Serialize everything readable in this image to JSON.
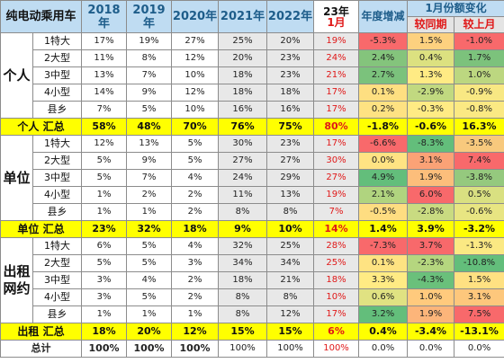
{
  "header": {
    "title": "纯电动乘用车",
    "y2018": "2018年",
    "y2019": "2019年",
    "y2020": "2020年",
    "y2021": "2021年",
    "y2022": "2022年",
    "y23": "23年",
    "jan": "1月",
    "change": "年度增减",
    "jan_change": "1月份额变化",
    "yoy": "较同期",
    "mom": "较上月"
  },
  "groups": [
    {
      "category": "个人",
      "rows": [
        {
          "seg": "1特大",
          "v": [
            "17%",
            "19%",
            "27%",
            "25%",
            "20%",
            "19%",
            "-5.3%",
            "1.5%",
            "-1.0%"
          ],
          "bg": [
            "#f8696b",
            "#fdd17f",
            "#f8696b"
          ]
        },
        {
          "seg": "2大型",
          "v": [
            "11%",
            "8%",
            "12%",
            "20%",
            "23%",
            "24%",
            "2.4%",
            "0.4%",
            "1.7%"
          ],
          "bg": [
            "#84c47c",
            "#dce180",
            "#7cc27c"
          ]
        },
        {
          "seg": "3中型",
          "v": [
            "13%",
            "7%",
            "10%",
            "18%",
            "23%",
            "21%",
            "2.7%",
            "1.3%",
            "1.0%"
          ],
          "bg": [
            "#7bc27c",
            "#ffeb84",
            "#bcd780"
          ]
        },
        {
          "seg": "4小型",
          "v": [
            "14%",
            "9%",
            "12%",
            "18%",
            "18%",
            "17%",
            "0.1%",
            "-2.9%",
            "-0.9%"
          ],
          "bg": [
            "#fedf81",
            "#c1d980",
            "#f8e883"
          ]
        },
        {
          "seg": "县乡",
          "v": [
            "7%",
            "5%",
            "10%",
            "16%",
            "16%",
            "17%",
            "0.2%",
            "-0.3%",
            "-0.8%"
          ],
          "bg": [
            "#fee282",
            "#ffeb84",
            "#fbe983"
          ]
        }
      ],
      "sum_label": "个人 汇总",
      "sum": [
        "58%",
        "48%",
        "70%",
        "76%",
        "75%",
        "80%",
        "-1.8%",
        "-0.6%",
        "16.3%"
      ]
    },
    {
      "category": "单位",
      "rows": [
        {
          "seg": "1特大",
          "v": [
            "12%",
            "13%",
            "5%",
            "30%",
            "23%",
            "17%",
            "-6.6%",
            "-8.3%",
            "-3.5%"
          ],
          "bg": [
            "#f8696b",
            "#63be7b",
            "#f8c97d"
          ]
        },
        {
          "seg": "2大型",
          "v": [
            "5%",
            "9%",
            "5%",
            "27%",
            "27%",
            "30%",
            "0.0%",
            "3.1%",
            "7.4%"
          ],
          "bg": [
            "#ffe383",
            "#fba276",
            "#f8696b"
          ]
        },
        {
          "seg": "3中型",
          "v": [
            "5%",
            "7%",
            "4%",
            "24%",
            "29%",
            "27%",
            "4.9%",
            "1.9%",
            "-3.8%"
          ],
          "bg": [
            "#63be7b",
            "#fcbe7b",
            "#95c97e"
          ]
        },
        {
          "seg": "4小型",
          "v": [
            "1%",
            "2%",
            "2%",
            "11%",
            "13%",
            "19%",
            "2.1%",
            "6.0%",
            "0.5%"
          ],
          "bg": [
            "#b0d47f",
            "#f8696b",
            "#d9e081"
          ]
        },
        {
          "seg": "县乡",
          "v": [
            "1%",
            "1%",
            "2%",
            "8%",
            "8%",
            "7%",
            "-0.5%",
            "-2.8%",
            "-0.6%"
          ],
          "bg": [
            "#fedd81",
            "#c9db81",
            "#e8e582"
          ]
        }
      ],
      "sum_label": "单位 汇总",
      "sum": [
        "23%",
        "32%",
        "18%",
        "9%",
        "10%",
        "14%",
        "1.4%",
        "3.9%",
        "-3.2%"
      ]
    },
    {
      "category": "出租网约",
      "rows": [
        {
          "seg": "1特大",
          "v": [
            "6%",
            "5%",
            "4%",
            "32%",
            "25%",
            "28%",
            "-7.3%",
            "3.7%",
            "-1.3%"
          ],
          "bg": [
            "#f8696b",
            "#f8696b",
            "#fbe983"
          ]
        },
        {
          "seg": "2大型",
          "v": [
            "5%",
            "5%",
            "3%",
            "34%",
            "34%",
            "25%",
            "0.1%",
            "-2.3%",
            "-10.8%"
          ],
          "bg": [
            "#fee382",
            "#b5d67f",
            "#63be7b"
          ]
        },
        {
          "seg": "3中型",
          "v": [
            "3%",
            "4%",
            "2%",
            "18%",
            "21%",
            "18%",
            "3.3%",
            "-4.3%",
            "1.5%"
          ],
          "bg": [
            "#ffeb84",
            "#6ac07b",
            "#ffe182"
          ]
        },
        {
          "seg": "4小型",
          "v": [
            "3%",
            "5%",
            "2%",
            "8%",
            "8%",
            "10%",
            "0.6%",
            "1.0%",
            "3.1%"
          ],
          "bg": [
            "#e0e282",
            "#ffca7d",
            "#fdc77c"
          ]
        },
        {
          "seg": "县乡",
          "v": [
            "1%",
            "1%",
            "1%",
            "8%",
            "12%",
            "17%",
            "3.2%",
            "1.9%",
            "7.5%"
          ],
          "bg": [
            "#63be7b",
            "#fcb57a",
            "#f8696b"
          ]
        }
      ],
      "sum_label": "出租 汇总",
      "sum": [
        "18%",
        "20%",
        "12%",
        "15%",
        "15%",
        "6%",
        "0.4%",
        "-3.4%",
        "-13.1%"
      ]
    }
  ],
  "total": {
    "label": "总计",
    "v": [
      "100%",
      "100%",
      "100%",
      "100%",
      "100%",
      "100%",
      "0.0%",
      "0.0%",
      "0.0%"
    ]
  }
}
